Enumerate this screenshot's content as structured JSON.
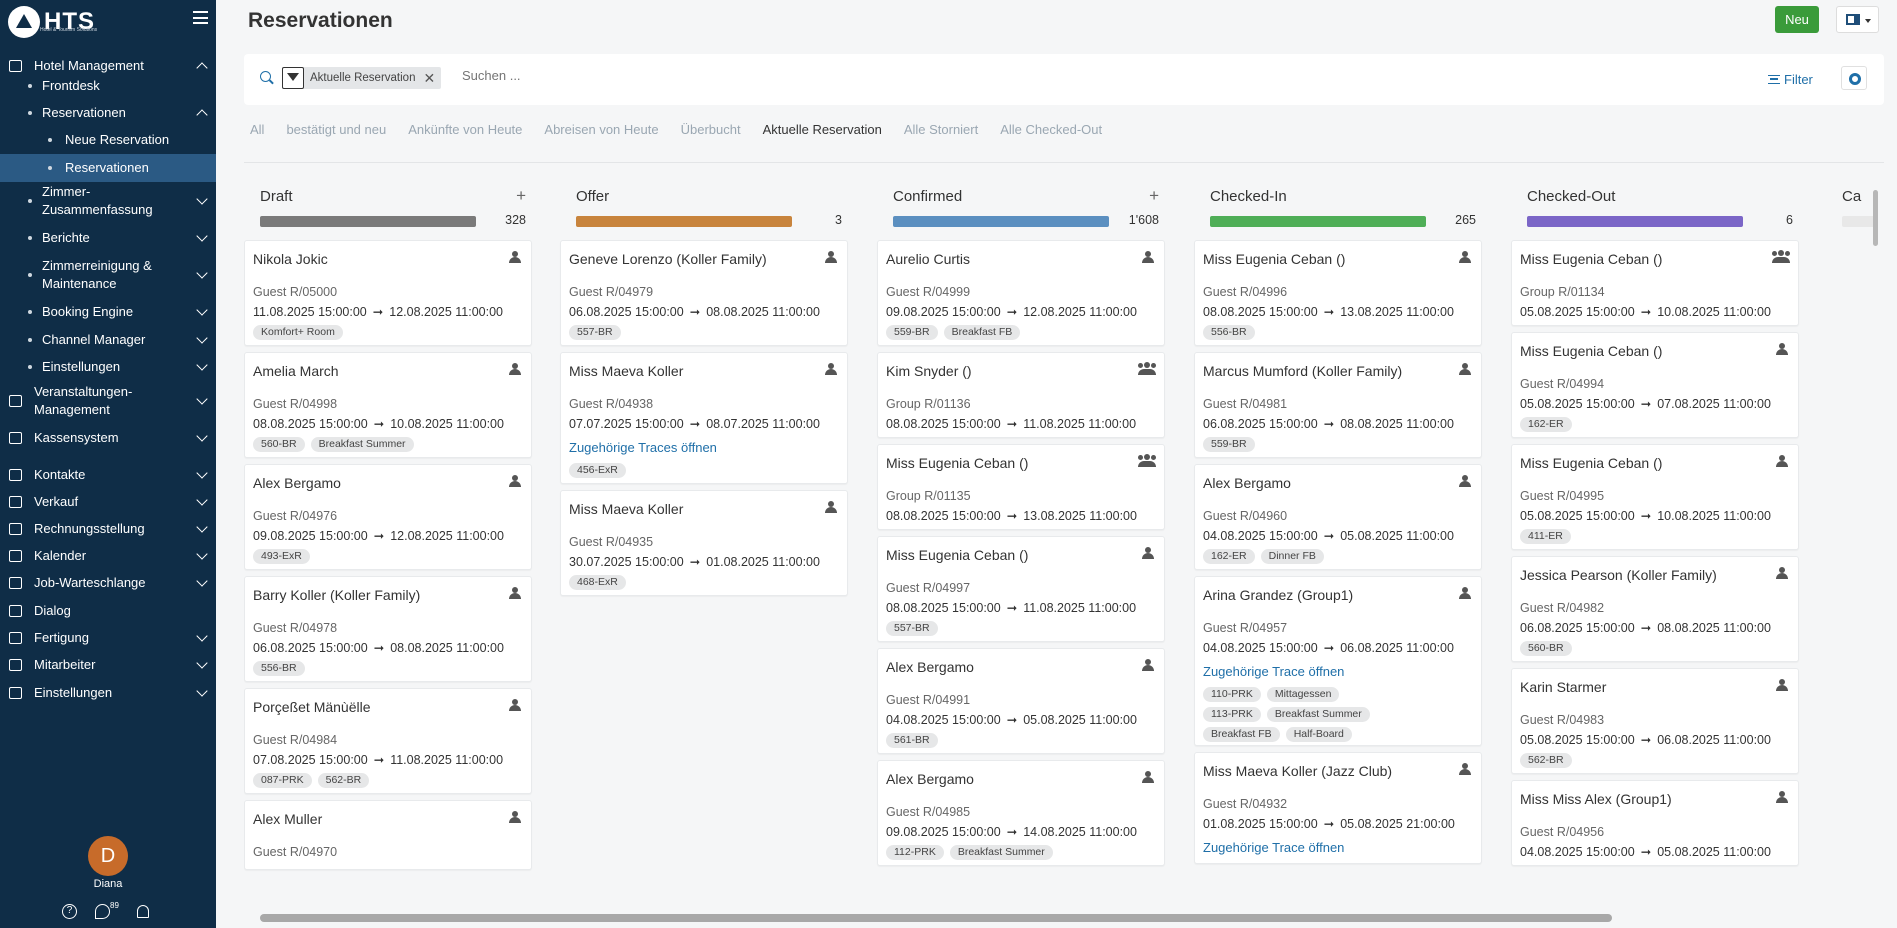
{
  "brand": {
    "name": "HTS",
    "sub": "Hotel & Tourism Solutions"
  },
  "sidebar": {
    "items": [
      {
        "label": "Hotel Management",
        "level": 0,
        "chev": "up"
      },
      {
        "label": "Frontdesk",
        "level": 1,
        "chev": "none"
      },
      {
        "label": "Reservationen",
        "level": 1,
        "chev": "up"
      },
      {
        "label": "Neue Reservation",
        "level": 2,
        "chev": "none"
      },
      {
        "label": "Reservationen",
        "level": 2,
        "chev": "none",
        "active": true
      },
      {
        "label": "Zimmer-\nZusammenfassung",
        "level": 1,
        "chev": "down"
      },
      {
        "label": "Berichte",
        "level": 1,
        "chev": "down"
      },
      {
        "label": "Zimmerreinigung &\nMaintenance",
        "level": 1,
        "chev": "down"
      },
      {
        "label": "Booking Engine",
        "level": 1,
        "chev": "down"
      },
      {
        "label": "Channel Manager",
        "level": 1,
        "chev": "down"
      },
      {
        "label": "Einstellungen",
        "level": 1,
        "chev": "down"
      },
      {
        "label": "Veranstaltungen-\nManagement",
        "level": 0,
        "chev": "down"
      },
      {
        "label": "Kassensystem",
        "level": 0,
        "chev": "down"
      },
      {
        "label": "Kontakte",
        "level": 0,
        "chev": "down"
      },
      {
        "label": "Verkauf",
        "level": 0,
        "chev": "down"
      },
      {
        "label": "Rechnungsstellung",
        "level": 0,
        "chev": "down"
      },
      {
        "label": "Kalender",
        "level": 0,
        "chev": "down"
      },
      {
        "label": "Job-Warteschlange",
        "level": 0,
        "chev": "down"
      },
      {
        "label": "Dialog",
        "level": 0,
        "chev": "none"
      },
      {
        "label": "Fertigung",
        "level": 0,
        "chev": "down"
      },
      {
        "label": "Mitarbeiter",
        "level": 0,
        "chev": "down"
      },
      {
        "label": "Einstellungen",
        "level": 0,
        "chev": "down"
      }
    ],
    "user": {
      "initial": "D",
      "name": "Diana"
    },
    "messages_count": "89"
  },
  "header": {
    "title": "Reservationen",
    "new_label": "Neu"
  },
  "search": {
    "facet": "Aktuelle Reservation",
    "placeholder": "Suchen ...",
    "filter_label": "Filter"
  },
  "tabs": [
    {
      "label": "All"
    },
    {
      "label": "bestätigt und neu"
    },
    {
      "label": "Ankünfte von Heute"
    },
    {
      "label": "Abreisen von Heute"
    },
    {
      "label": "Überbucht"
    },
    {
      "label": "Aktuelle Reservation",
      "active": true
    },
    {
      "label": "Alle Storniert"
    },
    {
      "label": "Alle Checked-Out"
    }
  ],
  "columns": [
    {
      "name": "Draft",
      "count": "328",
      "color": "#7a7a7a",
      "add": true,
      "cards": [
        {
          "name": "Nikola Jokic",
          "ref": "Guest R/05000",
          "from": "11.08.2025 15:00:00",
          "to": "12.08.2025 11:00:00",
          "tags": [
            "Komfort+ Room"
          ],
          "icon": "person"
        },
        {
          "name": "Amelia March",
          "ref": "Guest R/04998",
          "from": "08.08.2025 15:00:00",
          "to": "10.08.2025 11:00:00",
          "tags": [
            "560-BR",
            "Breakfast Summer"
          ],
          "icon": "person"
        },
        {
          "name": "Alex Bergamo",
          "ref": "Guest R/04976",
          "from": "09.08.2025 15:00:00",
          "to": "12.08.2025 11:00:00",
          "tags": [
            "493-ExR"
          ],
          "icon": "person"
        },
        {
          "name": "Barry Koller (Koller Family)",
          "ref": "Guest R/04978",
          "from": "06.08.2025 15:00:00",
          "to": "08.08.2025 11:00:00",
          "tags": [
            "556-BR"
          ],
          "icon": "person"
        },
        {
          "name": "Porçeßet Mänùëlle",
          "ref": "Guest R/04984",
          "from": "07.08.2025 15:00:00",
          "to": "11.08.2025 11:00:00",
          "tags": [
            "087-PRK",
            "562-BR"
          ],
          "icon": "person"
        },
        {
          "name": "Alex Muller",
          "ref": "Guest R/04970",
          "from": "",
          "to": "",
          "tags": [],
          "icon": "person"
        }
      ]
    },
    {
      "name": "Offer",
      "count": "3",
      "color": "#c8843d",
      "add": false,
      "cards": [
        {
          "name": "Geneve Lorenzo (Koller Family)",
          "ref": "Guest R/04979",
          "from": "06.08.2025 15:00:00",
          "to": "08.08.2025 11:00:00",
          "tags": [
            "557-BR"
          ],
          "icon": "person"
        },
        {
          "name": "Miss Maeva Koller",
          "ref": "Guest R/04938",
          "from": "07.07.2025 15:00:00",
          "to": "08.07.2025 11:00:00",
          "link": "Zugehörige Traces öffnen",
          "tags": [
            "456-ExR"
          ],
          "icon": "person"
        },
        {
          "name": "Miss Maeva Koller",
          "ref": "Guest R/04935",
          "from": "30.07.2025 15:00:00",
          "to": "01.08.2025 11:00:00",
          "tags": [
            "468-ExR"
          ],
          "icon": "person"
        }
      ]
    },
    {
      "name": "Confirmed",
      "count": "1'608",
      "color": "#5b8fc0",
      "add": true,
      "cards": [
        {
          "name": "Aurelio Curtis",
          "ref": "Guest R/04999",
          "from": "09.08.2025 15:00:00",
          "to": "12.08.2025 11:00:00",
          "tags": [
            "559-BR",
            "Breakfast FB"
          ],
          "icon": "person"
        },
        {
          "name": "Kim Snyder ()",
          "ref": "Group R/01136",
          "from": "08.08.2025 15:00:00",
          "to": "11.08.2025 11:00:00",
          "tags": [],
          "icon": "group"
        },
        {
          "name": "Miss Eugenia Ceban ()",
          "ref": "Group R/01135",
          "from": "08.08.2025 15:00:00",
          "to": "13.08.2025 11:00:00",
          "tags": [],
          "icon": "group"
        },
        {
          "name": "Miss Eugenia Ceban ()",
          "ref": "Guest R/04997",
          "from": "08.08.2025 15:00:00",
          "to": "11.08.2025 11:00:00",
          "tags": [
            "557-BR"
          ],
          "icon": "person"
        },
        {
          "name": "Alex Bergamo",
          "ref": "Guest R/04991",
          "from": "04.08.2025 15:00:00",
          "to": "05.08.2025 11:00:00",
          "tags": [
            "561-BR"
          ],
          "icon": "person"
        },
        {
          "name": "Alex Bergamo",
          "ref": "Guest R/04985",
          "from": "09.08.2025 15:00:00",
          "to": "14.08.2025 11:00:00",
          "tags": [
            "112-PRK",
            "Breakfast Summer"
          ],
          "icon": "person"
        }
      ]
    },
    {
      "name": "Checked-In",
      "count": "265",
      "color": "#4fae57",
      "add": false,
      "cards": [
        {
          "name": "Miss Eugenia Ceban ()",
          "ref": "Guest R/04996",
          "from": "08.08.2025 15:00:00",
          "to": "13.08.2025 11:00:00",
          "tags": [
            "556-BR"
          ],
          "icon": "person"
        },
        {
          "name": "Marcus Mumford (Koller Family)",
          "ref": "Guest R/04981",
          "from": "06.08.2025 15:00:00",
          "to": "08.08.2025 11:00:00",
          "tags": [
            "559-BR"
          ],
          "icon": "person"
        },
        {
          "name": "Alex Bergamo",
          "ref": "Guest R/04960",
          "from": "04.08.2025 15:00:00",
          "to": "05.08.2025 11:00:00",
          "tags": [
            "162-ER",
            "Dinner FB"
          ],
          "icon": "person"
        },
        {
          "name": "Arina Grandez (Group1)",
          "ref": "Guest R/04957",
          "from": "04.08.2025 15:00:00",
          "to": "06.08.2025 11:00:00",
          "link": "Zugehörige Trace öffnen",
          "tagrows": [
            [
              "110-PRK",
              "Mittagessen"
            ],
            [
              "113-PRK",
              "Breakfast Summer"
            ],
            [
              "Breakfast FB",
              "Half-Board"
            ]
          ],
          "icon": "person"
        },
        {
          "name": "Miss Maeva Koller (Jazz Club)",
          "ref": "Guest R/04932",
          "from": "01.08.2025 15:00:00",
          "to": "05.08.2025 21:00:00",
          "link": "Zugehörige Trace öffnen",
          "tags": [],
          "icon": "person"
        }
      ]
    },
    {
      "name": "Checked-Out",
      "count": "6",
      "color": "#7b66c7",
      "add": false,
      "cards": [
        {
          "name": "Miss Eugenia Ceban ()",
          "ref": "Group R/01134",
          "from": "05.08.2025 15:00:00",
          "to": "10.08.2025 11:00:00",
          "tags": [],
          "icon": "group"
        },
        {
          "name": "Miss Eugenia Ceban ()",
          "ref": "Guest R/04994",
          "from": "05.08.2025 15:00:00",
          "to": "07.08.2025 11:00:00",
          "tags": [
            "162-ER"
          ],
          "icon": "person"
        },
        {
          "name": "Miss Eugenia Ceban ()",
          "ref": "Guest R/04995",
          "from": "05.08.2025 15:00:00",
          "to": "10.08.2025 11:00:00",
          "tags": [
            "411-ER"
          ],
          "icon": "person"
        },
        {
          "name": "Jessica Pearson (Koller Family)",
          "ref": "Guest R/04982",
          "from": "06.08.2025 15:00:00",
          "to": "08.08.2025 11:00:00",
          "tags": [
            "560-BR"
          ],
          "icon": "person"
        },
        {
          "name": "Karin Starmer",
          "ref": "Guest R/04983",
          "from": "05.08.2025 15:00:00",
          "to": "06.08.2025 11:00:00",
          "tags": [
            "562-BR"
          ],
          "icon": "person"
        },
        {
          "name": "Miss Miss Alex (Group1)",
          "ref": "Guest R/04956",
          "from": "04.08.2025 15:00:00",
          "to": "05.08.2025 11:00:00",
          "tags": [],
          "icon": "person"
        }
      ]
    },
    {
      "name": "Ca",
      "count": "",
      "color": "#e8e8e8",
      "add": false,
      "cards": []
    }
  ]
}
